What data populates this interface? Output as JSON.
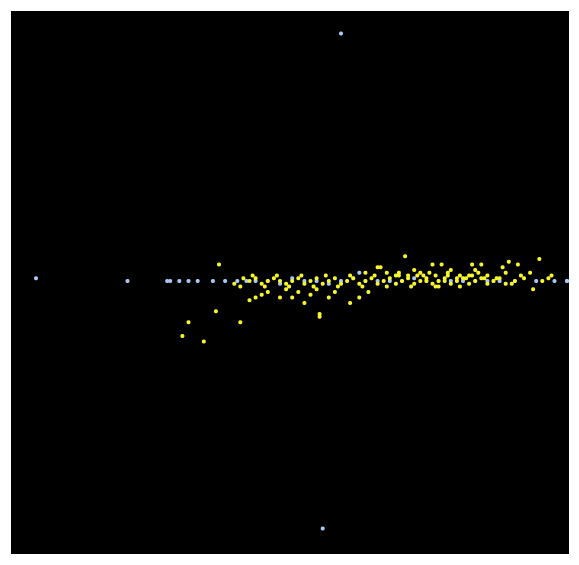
{
  "chart_data": {
    "type": "scatter",
    "title": "",
    "xlabel": "",
    "ylabel": "",
    "xlim": [
      -1.0,
      1.0
    ],
    "ylim": [
      -1.0,
      1.0
    ],
    "grid": false,
    "background": "#000000",
    "series": [
      {
        "color": "#a9c8f5",
        "points": [
          [
            0.0,
            0.9
          ],
          [
            -0.06,
            -0.9
          ],
          [
            -1.0,
            0.01
          ],
          [
            -0.7,
            0.0
          ],
          [
            -0.57,
            0.0
          ],
          [
            -0.56,
            0.0
          ],
          [
            -0.53,
            0.0
          ],
          [
            -0.5,
            0.0
          ],
          [
            -0.47,
            0.0
          ],
          [
            -0.42,
            0.0
          ],
          [
            -0.38,
            0.0
          ],
          [
            -0.34,
            0.0
          ],
          [
            -0.31,
            0.0
          ],
          [
            -0.28,
            0.0
          ],
          [
            -0.24,
            0.0
          ],
          [
            -0.2,
            -0.01
          ],
          [
            -0.16,
            0.01
          ],
          [
            -0.12,
            0.0
          ],
          [
            -0.08,
            0.0
          ],
          [
            -0.04,
            -0.01
          ],
          [
            0.0,
            0.0
          ],
          [
            0.04,
            0.01
          ],
          [
            0.08,
            0.0
          ],
          [
            0.12,
            0.0
          ],
          [
            0.16,
            0.0
          ],
          [
            0.2,
            0.0
          ],
          [
            0.24,
            0.01
          ],
          [
            0.28,
            0.0
          ],
          [
            0.32,
            0.0
          ],
          [
            0.36,
            0.0
          ],
          [
            0.4,
            0.0
          ],
          [
            0.44,
            0.0
          ],
          [
            0.48,
            0.0
          ],
          [
            0.52,
            0.0
          ],
          [
            0.57,
            0.0
          ],
          [
            0.64,
            0.0
          ],
          [
            0.7,
            0.0
          ],
          [
            0.75,
            0.0
          ],
          [
            0.77,
            0.0
          ],
          [
            0.78,
            0.0
          ],
          [
            0.06,
            0.03
          ],
          [
            -0.09,
            -0.02
          ]
        ]
      },
      {
        "color": "#f6f62a",
        "points": [
          [
            -0.4,
            0.06
          ],
          [
            -0.41,
            -0.11
          ],
          [
            -0.33,
            -0.15
          ],
          [
            -0.5,
            -0.15
          ],
          [
            -0.52,
            -0.2
          ],
          [
            -0.45,
            -0.22
          ],
          [
            -0.3,
            -0.07
          ],
          [
            -0.28,
            -0.06
          ],
          [
            -0.26,
            -0.05
          ],
          [
            -0.24,
            -0.04
          ],
          [
            -0.2,
            -0.06
          ],
          [
            -0.18,
            -0.03
          ],
          [
            -0.16,
            -0.06
          ],
          [
            -0.14,
            -0.04
          ],
          [
            -0.12,
            -0.08
          ],
          [
            -0.1,
            -0.05
          ],
          [
            -0.08,
            -0.03
          ],
          [
            -0.07,
            -0.12
          ],
          [
            -0.07,
            -0.13
          ],
          [
            -0.04,
            -0.06
          ],
          [
            -0.02,
            -0.04
          ],
          [
            0.03,
            -0.08
          ],
          [
            0.06,
            -0.06
          ],
          [
            0.08,
            0.03
          ],
          [
            0.09,
            -0.04
          ],
          [
            0.12,
            0.05
          ],
          [
            0.13,
            0.05
          ],
          [
            0.15,
            0.03
          ],
          [
            0.18,
            0.02
          ],
          [
            0.19,
            0.03
          ],
          [
            0.21,
            0.09
          ],
          [
            0.22,
            0.02
          ],
          [
            0.24,
            0.04
          ],
          [
            0.25,
            0.02
          ],
          [
            0.26,
            0.03
          ],
          [
            0.28,
            0.0
          ],
          [
            0.29,
            0.03
          ],
          [
            0.31,
            0.02
          ],
          [
            0.32,
            -0.02
          ],
          [
            0.34,
            0.0
          ],
          [
            0.35,
            0.03
          ],
          [
            0.36,
            0.04
          ],
          [
            0.38,
            0.01
          ],
          [
            0.39,
            0.02
          ],
          [
            0.41,
            0.01
          ],
          [
            0.42,
            0.02
          ],
          [
            0.44,
            0.04
          ],
          [
            0.45,
            0.03
          ],
          [
            0.47,
            0.01
          ],
          [
            0.48,
            0.02
          ],
          [
            0.5,
            0.0
          ],
          [
            0.51,
            0.01
          ],
          [
            0.53,
            0.05
          ],
          [
            0.54,
            0.03
          ],
          [
            0.56,
            -0.01
          ],
          [
            0.57,
            0.0
          ],
          [
            0.59,
            0.02
          ],
          [
            0.6,
            0.01
          ],
          [
            0.62,
            0.03
          ],
          [
            0.63,
            -0.03
          ],
          [
            0.65,
            0.08
          ],
          [
            0.66,
            0.0
          ],
          [
            0.68,
            0.01
          ],
          [
            0.69,
            0.02
          ],
          [
            0.3,
            0.06
          ],
          [
            0.33,
            0.06
          ],
          [
            0.43,
            0.06
          ],
          [
            0.46,
            0.06
          ],
          [
            0.55,
            0.07
          ],
          [
            0.58,
            0.06
          ],
          [
            -0.35,
            -0.01
          ],
          [
            -0.32,
            0.01
          ],
          [
            -0.3,
            0.0
          ],
          [
            -0.28,
            0.01
          ],
          [
            -0.26,
            -0.01
          ],
          [
            -0.24,
            0.0
          ],
          [
            -0.22,
            0.01
          ],
          [
            -0.2,
            0.0
          ],
          [
            -0.18,
            -0.01
          ],
          [
            -0.16,
            0.0
          ],
          [
            -0.14,
            0.01
          ],
          [
            -0.12,
            -0.01
          ],
          [
            -0.1,
            0.0
          ],
          [
            -0.08,
            0.01
          ],
          [
            -0.06,
            -0.01
          ],
          [
            -0.04,
            0.0
          ],
          [
            -0.02,
            0.01
          ],
          [
            0.0,
            -0.01
          ],
          [
            0.02,
            0.0
          ],
          [
            0.04,
            0.01
          ],
          [
            0.06,
            -0.01
          ],
          [
            0.08,
            0.0
          ],
          [
            0.1,
            0.01
          ],
          [
            0.12,
            -0.01
          ],
          [
            0.14,
            0.0
          ],
          [
            0.16,
            0.01
          ],
          [
            0.18,
            -0.01
          ],
          [
            0.2,
            0.0
          ],
          [
            0.22,
            0.01
          ],
          [
            0.24,
            -0.01
          ],
          [
            0.26,
            0.0
          ],
          [
            0.28,
            0.01
          ],
          [
            0.3,
            -0.01
          ],
          [
            0.32,
            0.0
          ],
          [
            0.34,
            0.01
          ],
          [
            0.36,
            -0.01
          ],
          [
            0.38,
            0.0
          ],
          [
            0.4,
            0.01
          ],
          [
            0.42,
            -0.01
          ],
          [
            0.44,
            0.0
          ],
          [
            0.46,
            0.01
          ],
          [
            0.48,
            -0.01
          ],
          [
            0.5,
            0.0
          ],
          [
            0.52,
            0.01
          ],
          [
            0.54,
            -0.01
          ],
          [
            -0.33,
            -0.02
          ],
          [
            -0.29,
            0.02
          ],
          [
            -0.25,
            -0.02
          ],
          [
            -0.21,
            0.02
          ],
          [
            -0.17,
            -0.02
          ],
          [
            -0.13,
            0.02
          ],
          [
            -0.09,
            -0.02
          ],
          [
            -0.05,
            0.02
          ],
          [
            -0.01,
            -0.02
          ],
          [
            0.03,
            0.02
          ],
          [
            0.07,
            -0.02
          ],
          [
            0.11,
            0.02
          ],
          [
            0.15,
            -0.02
          ],
          [
            0.19,
            0.02
          ],
          [
            0.23,
            -0.02
          ],
          [
            0.27,
            0.02
          ],
          [
            0.31,
            -0.02
          ],
          [
            0.35,
            0.02
          ],
          [
            0.39,
            -0.02
          ],
          [
            0.43,
            0.02
          ]
        ]
      }
    ]
  }
}
